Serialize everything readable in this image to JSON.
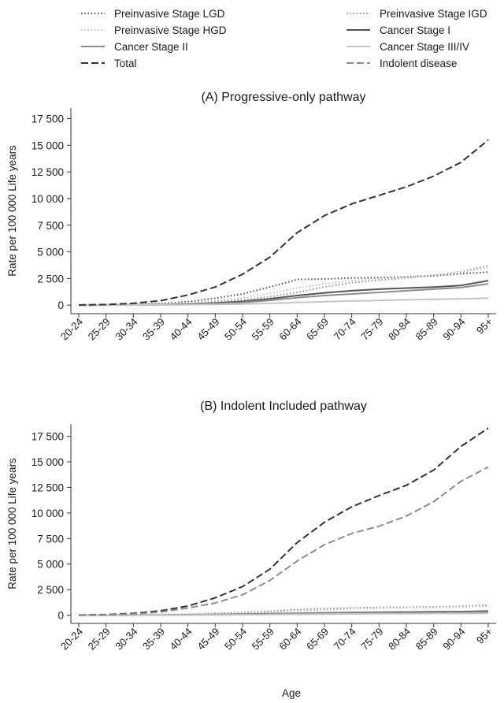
{
  "legend": {
    "items": [
      {
        "name": "Preinvasive Stage LGD",
        "color": "#555555",
        "dash": "dot"
      },
      {
        "name": "Preinvasive Stage IGD",
        "color": "#9a9a9a",
        "dash": "dot"
      },
      {
        "name": "Preinvasive Stage HGD",
        "color": "#c4c4c4",
        "dash": "dot"
      },
      {
        "name": "Cancer Stage I",
        "color": "#555555",
        "dash": "solid"
      },
      {
        "name": "Cancer Stage II",
        "color": "#8c8c8c",
        "dash": "solid"
      },
      {
        "name": "Cancer Stage III/IV",
        "color": "#c4c4c4",
        "dash": "solid"
      },
      {
        "name": "Total",
        "color": "#333333",
        "dash": "dash"
      },
      {
        "name": "Indolent disease",
        "color": "#8c8c8c",
        "dash": "dash"
      }
    ]
  },
  "chart_data": [
    {
      "type": "line",
      "title": "(A) Progressive-only pathway",
      "xlabel": "",
      "ylabel": "Rate per 100 000 Life years",
      "ylim": [
        -800,
        18500
      ],
      "yticks": [
        0,
        2500,
        5000,
        7500,
        10000,
        12500,
        15000,
        17500
      ],
      "ytick_labels": [
        "0",
        "2 500",
        "5 000",
        "7 500",
        "10 000",
        "12 500",
        "15 000",
        "17 500"
      ],
      "categories": [
        "20-24",
        "25-29",
        "30-34",
        "35-39",
        "40-44",
        "45-49",
        "50-54",
        "55-59",
        "60-64",
        "65-69",
        "70-74",
        "75-79",
        "80-84",
        "85-89",
        "90-94",
        "95+"
      ],
      "series": [
        {
          "name": "Preinvasive Stage LGD",
          "values": [
            10,
            30,
            80,
            160,
            330,
            650,
            1050,
            1700,
            2400,
            2450,
            2550,
            2580,
            2650,
            2750,
            2950,
            3100
          ]
        },
        {
          "name": "Preinvasive Stage IGD",
          "values": [
            5,
            15,
            40,
            90,
            170,
            310,
            500,
            800,
            1200,
            1700,
            2100,
            2350,
            2550,
            2800,
            3150,
            3700
          ]
        },
        {
          "name": "Preinvasive Stage HGD",
          "values": [
            5,
            20,
            50,
            110,
            220,
            420,
            700,
            1100,
            1600,
            2000,
            2300,
            2500,
            2650,
            2800,
            3100,
            3500
          ]
        },
        {
          "name": "Cancer Stage I",
          "values": [
            0,
            10,
            20,
            50,
            100,
            200,
            350,
            600,
            900,
            1150,
            1350,
            1500,
            1600,
            1700,
            1850,
            2300
          ]
        },
        {
          "name": "Cancer Stage II",
          "values": [
            0,
            5,
            15,
            35,
            70,
            140,
            250,
            450,
            700,
            900,
            1050,
            1200,
            1350,
            1500,
            1650,
            2000
          ]
        },
        {
          "name": "Cancer Stage III/IV",
          "values": [
            0,
            5,
            10,
            20,
            40,
            70,
            110,
            170,
            250,
            320,
            390,
            440,
            500,
            550,
            600,
            650
          ]
        },
        {
          "name": "Total",
          "values": [
            20,
            60,
            170,
            420,
            950,
            1700,
            2900,
            4500,
            6800,
            8400,
            9500,
            10300,
            11100,
            12100,
            13400,
            15500
          ]
        }
      ]
    },
    {
      "type": "line",
      "title": "(B) Indolent Included pathway",
      "xlabel": "Age",
      "ylabel": "Rate per 100 000 Life years",
      "ylim": [
        -800,
        18700
      ],
      "yticks": [
        0,
        2500,
        5000,
        7500,
        10000,
        12500,
        15000,
        17500
      ],
      "ytick_labels": [
        "0",
        "2 500",
        "5 000",
        "7 500",
        "10 000",
        "12 500",
        "15 000",
        "17 500"
      ],
      "categories": [
        "20-24",
        "25-29",
        "30-34",
        "35-39",
        "40-44",
        "45-49",
        "50-54",
        "55-59",
        "60-64",
        "65-69",
        "70-74",
        "75-79",
        "80-84",
        "85-89",
        "90-94",
        "95+"
      ],
      "series": [
        {
          "name": "Preinvasive Stage LGD",
          "values": [
            5,
            15,
            30,
            60,
            100,
            170,
            260,
            380,
            520,
            620,
            700,
            760,
            780,
            800,
            850,
            900
          ]
        },
        {
          "name": "Preinvasive Stage IGD",
          "values": [
            5,
            10,
            25,
            50,
            90,
            150,
            230,
            340,
            470,
            580,
            680,
            750,
            780,
            800,
            880,
            1000
          ]
        },
        {
          "name": "Preinvasive Stage HGD",
          "values": [
            5,
            10,
            20,
            40,
            80,
            130,
            200,
            300,
            420,
            530,
            620,
            690,
            730,
            760,
            820,
            900
          ]
        },
        {
          "name": "Cancer Stage I",
          "values": [
            0,
            5,
            10,
            20,
            40,
            70,
            100,
            140,
            190,
            230,
            260,
            290,
            310,
            330,
            350,
            400
          ]
        },
        {
          "name": "Cancer Stage II",
          "values": [
            0,
            3,
            8,
            15,
            30,
            55,
            80,
            110,
            150,
            180,
            210,
            230,
            250,
            265,
            280,
            320
          ]
        },
        {
          "name": "Cancer Stage III/IV",
          "values": [
            0,
            2,
            5,
            10,
            20,
            35,
            50,
            70,
            90,
            110,
            125,
            140,
            150,
            160,
            170,
            190
          ]
        },
        {
          "name": "Total",
          "values": [
            20,
            60,
            180,
            430,
            900,
            1700,
            2800,
            4500,
            7100,
            9100,
            10600,
            11700,
            12700,
            14200,
            16500,
            18300
          ]
        },
        {
          "name": "Indolent disease",
          "values": [
            10,
            40,
            120,
            320,
            700,
            1200,
            2000,
            3400,
            5300,
            6900,
            8000,
            8700,
            9700,
            11100,
            13100,
            14500
          ]
        }
      ]
    }
  ]
}
